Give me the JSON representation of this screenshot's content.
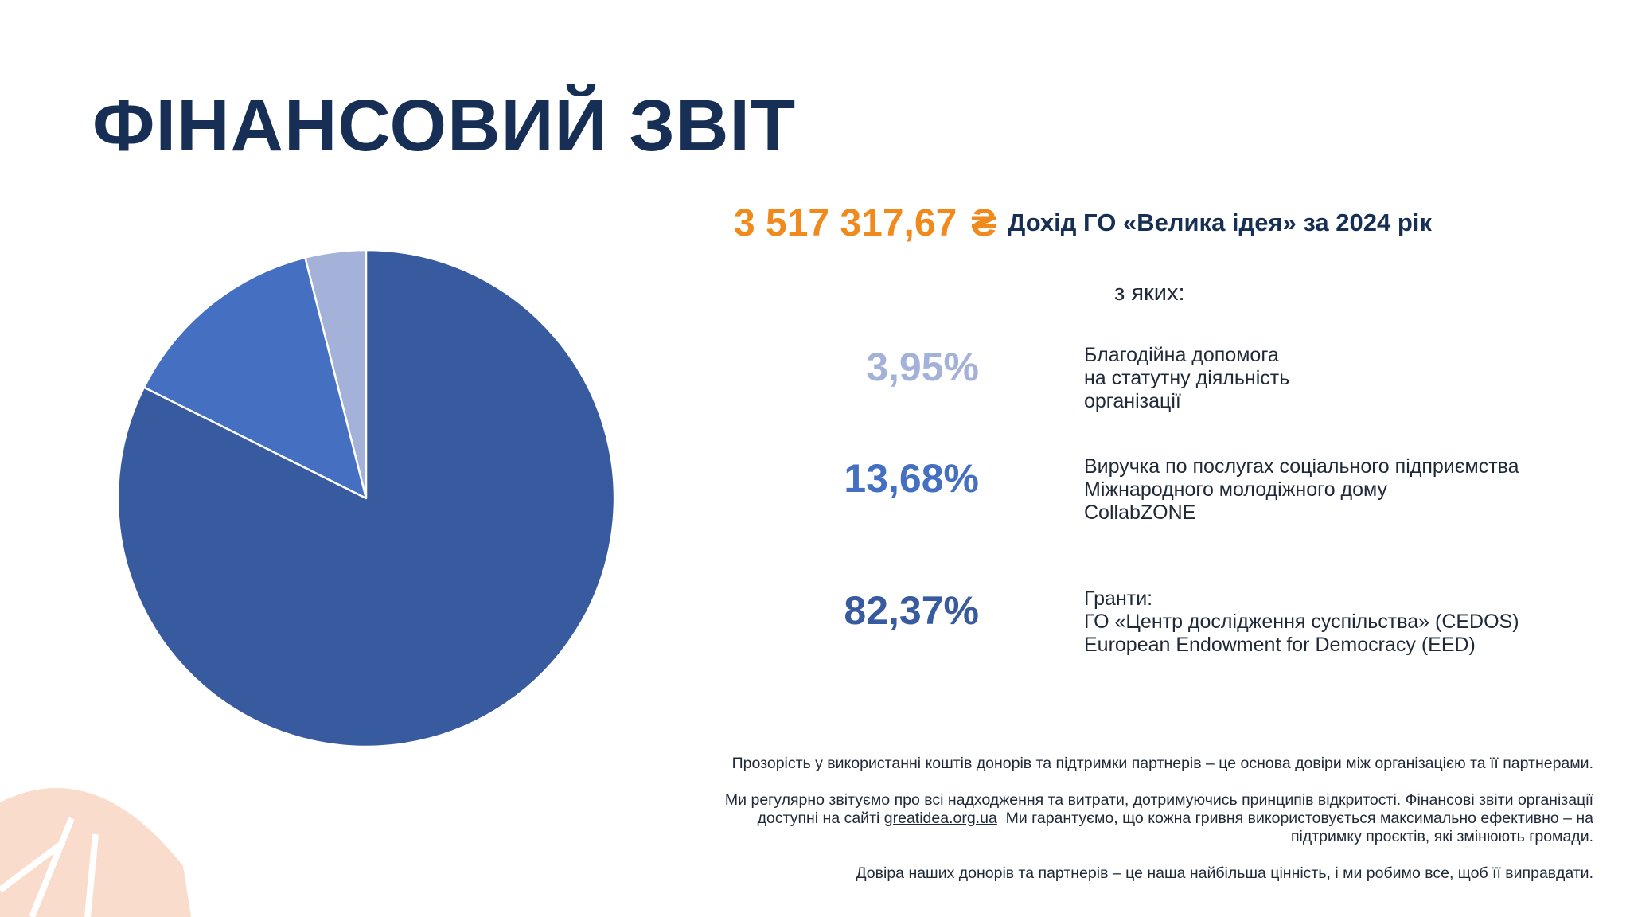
{
  "title": "ФІНАНСОВИЙ ЗВІТ",
  "headline": {
    "amount": "3 517 317,67",
    "currency": "₴",
    "label": "Дохід ГО «Велика ідея» за 2024 рік"
  },
  "subheading": "з яких:",
  "items": [
    {
      "percent": "3,95%",
      "lines": [
        "Благодійна допомога",
        "на статутну діяльність",
        "організації"
      ]
    },
    {
      "percent": "13,68%",
      "lines": [
        "Виручка по послугах соціального підприємства",
        "Міжнародного молодіжного дому",
        "CollabZONE"
      ]
    },
    {
      "percent": "82,37%",
      "lines": [
        "Гранти:",
        "ГО «Центр дослідження суспільства» (CEDOS)",
        "European Endowment for Democracy (EED)"
      ]
    }
  ],
  "footer": {
    "p1": "Прозорість у використанні коштів донорів та підтримки партнерів – це основа довіри між організацією та її партнерами.",
    "p2_line1": "Ми регулярно звітуємо про всі надходження та витрати, дотримуючись принципів відкритості. Фінансові звіти організації",
    "p2_line2_before": "доступні на сайті ",
    "p2_link": "greatidea.org.ua",
    "p2_line2_after": "  Ми гарантуємо, що кожна гривня використовується максимально ефективно – на",
    "p2_line3": "підтримку проєктів, які змінюють громади.",
    "p3": "Довіра наших донорів та партнерів – це наша найбільша цінність, і ми робимо все, щоб її виправдати."
  },
  "colors": {
    "title": "#172f55",
    "accent_orange": "#f08a1c",
    "text_dark": "#1f2937",
    "slice_light": "#a4b2d9",
    "slice_medium": "#4570c2",
    "slice_dark": "#385a9e",
    "pct_light": "#a4b2d9",
    "pct_medium": "#4570c2",
    "pct_dark": "#385a9e",
    "deco": "#f9dccb"
  },
  "chart_data": {
    "type": "pie",
    "categories": [
      "Благодійна допомога на статутну діяльність організації",
      "Виручка по послугах соціального підприємства Міжнародного молодіжного дому CollabZONE",
      "Гранти"
    ],
    "values": [
      3.95,
      13.68,
      82.37
    ],
    "legend": "right"
  }
}
